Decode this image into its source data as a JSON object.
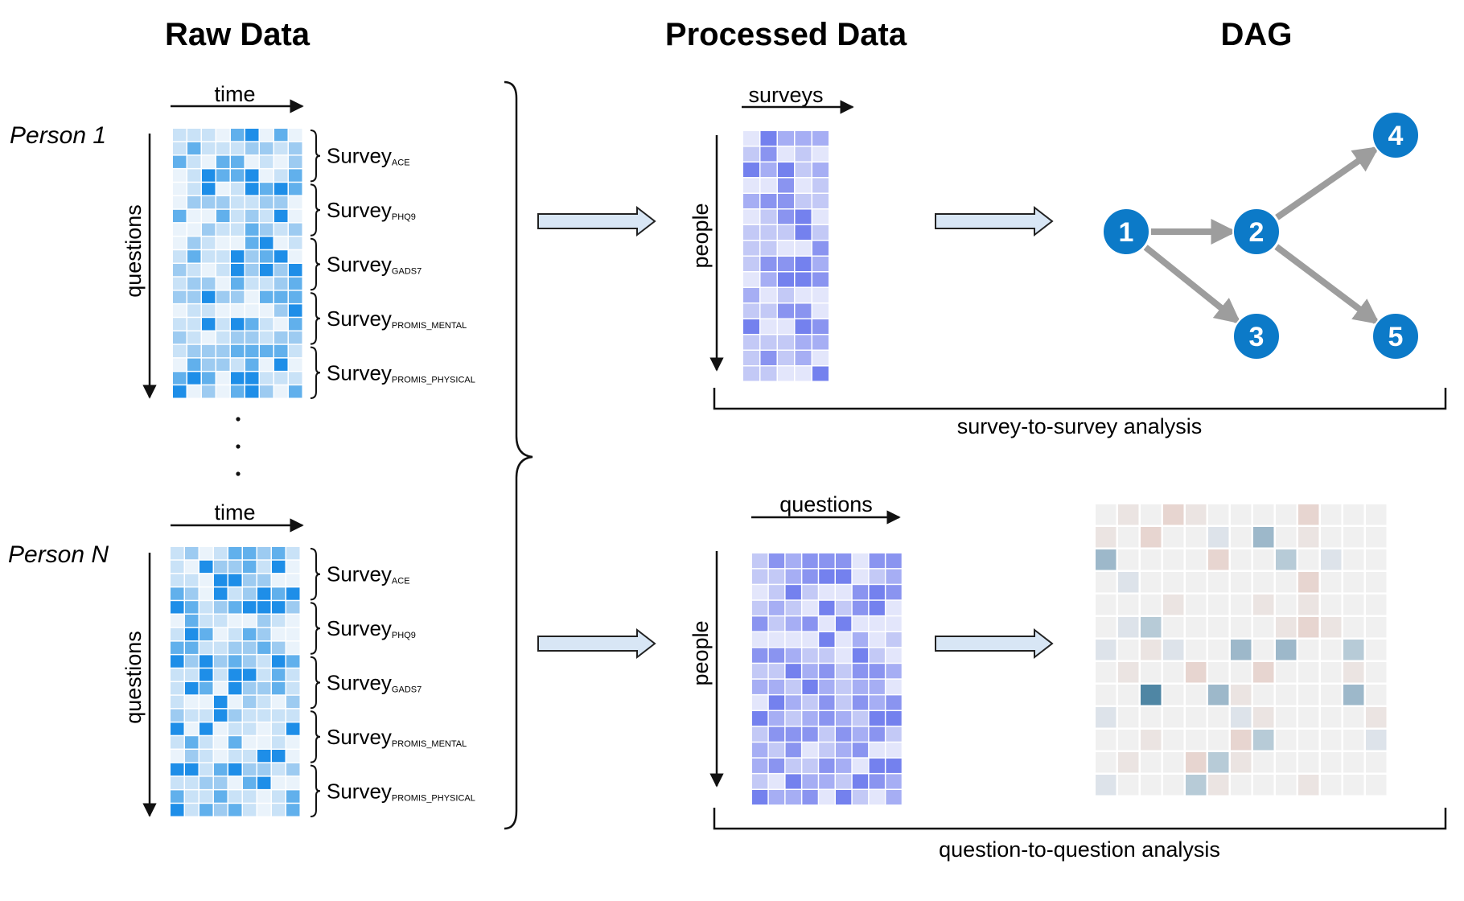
{
  "titles": {
    "raw": "Raw Data",
    "processed": "Processed Data",
    "dag": "DAG"
  },
  "raw_data": {
    "blocks": [
      {
        "person": "Person 1",
        "time_label": "time",
        "questions_label": "questions",
        "surveys": [
          {
            "name": "Survey",
            "sub": "ACE"
          },
          {
            "name": "Survey",
            "sub": "PHQ9"
          },
          {
            "name": "Survey",
            "sub": "GADS7"
          },
          {
            "name": "Survey",
            "sub": "PROMIS_MENTAL"
          },
          {
            "name": "Survey",
            "sub": "PROMIS_PHYSICAL"
          }
        ]
      },
      {
        "person": "Person N",
        "time_label": "time",
        "questions_label": "questions",
        "surveys": [
          {
            "name": "Survey",
            "sub": "ACE"
          },
          {
            "name": "Survey",
            "sub": "PHQ9"
          },
          {
            "name": "Survey",
            "sub": "GADS7"
          },
          {
            "name": "Survey",
            "sub": "PROMIS_MENTAL"
          },
          {
            "name": "Survey",
            "sub": "PROMIS_PHYSICAL"
          }
        ]
      }
    ]
  },
  "processed": {
    "top": {
      "x_label": "surveys",
      "y_label": "people",
      "caption": "survey-to-survey analysis"
    },
    "bottom": {
      "x_label": "questions",
      "y_label": "people",
      "caption": "question-to-question analysis"
    }
  },
  "dag": {
    "nodes": [
      "1",
      "2",
      "3",
      "4",
      "5"
    ],
    "edges": [
      [
        "1",
        "2"
      ],
      [
        "1",
        "3"
      ],
      [
        "2",
        "4"
      ],
      [
        "2",
        "5"
      ]
    ]
  },
  "colors": {
    "raw_palette": [
      "#eaf3fb",
      "#c9e2f7",
      "#9dcbf1",
      "#61b0ec",
      "#1e8ee8"
    ],
    "processed_palette": [
      "#e3e6fb",
      "#c3c9f6",
      "#a6aef4",
      "#8a94f0",
      "#7481ee"
    ],
    "heatmap_palette": [
      "#f0f0f0",
      "#ebe4e2",
      "#e7d5d0",
      "#dde3ea",
      "#b7cbd7",
      "#9db8ca",
      "#4f86a4"
    ],
    "node": "#0c7ac8",
    "edge": "#9d9d9d",
    "arrow_fill": "#d8e6f5",
    "arrow_stroke": "#222222"
  }
}
